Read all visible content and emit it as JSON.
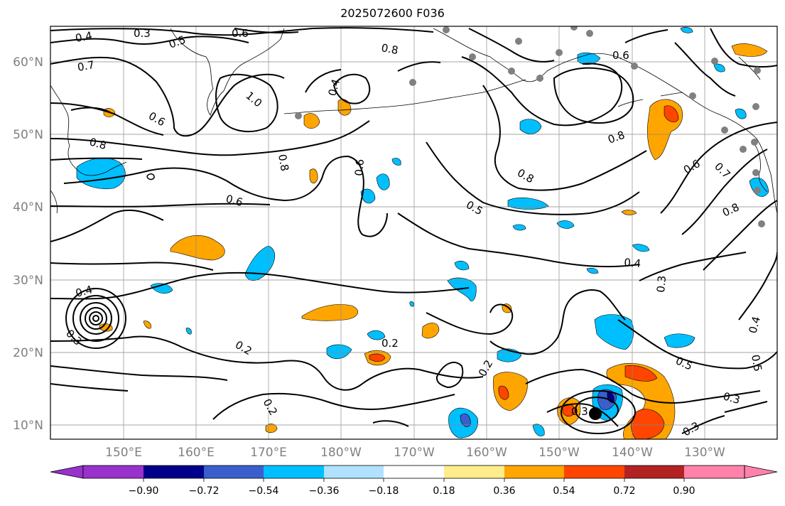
{
  "title": "2025072600 F036",
  "map": {
    "lat_labels": [
      "60°N",
      "50°N",
      "40°N",
      "30°N",
      "20°N",
      "10°N"
    ],
    "lon_labels": [
      "150°E",
      "160°E",
      "170°E",
      "180°W",
      "170°W",
      "160°W",
      "150°W",
      "140°W",
      "130°W"
    ],
    "contour_labels": [
      "0.4",
      "0.3",
      "0.6",
      "0.5",
      "0.7",
      "1.0",
      "0.6",
      "0.8",
      "0.8",
      "0.4",
      "0.6",
      "0.6",
      "0.8",
      "0.5",
      "0.8",
      "0.6",
      "0.8",
      "0.6",
      "0.7",
      "0.8",
      "0.4",
      "0.3",
      "0.2",
      "0.2",
      "0.2",
      "0.2",
      "0.3",
      "0.3",
      "0.5",
      "0.5",
      "0.4",
      "0.3",
      "0.4",
      "0.3"
    ],
    "colors": {
      "orange": "#ffa500",
      "red": "#ff4500",
      "light_blue": "#00bfff",
      "blue": "#3a5fcd",
      "navy": "#000080"
    }
  },
  "colorbar": {
    "ticks": [
      "−0.90",
      "−0.72",
      "−0.54",
      "−0.36",
      "−0.18",
      "0.18",
      "0.36",
      "0.54",
      "0.72",
      "0.90"
    ],
    "colors": [
      "#9932cc",
      "#00008b",
      "#3a5fcd",
      "#00bfff",
      "#b0e2ff",
      "#ffffff",
      "#ffec8b",
      "#ffa500",
      "#ff4500",
      "#b22222",
      "#ff82ab",
      "#ff82ab"
    ]
  }
}
